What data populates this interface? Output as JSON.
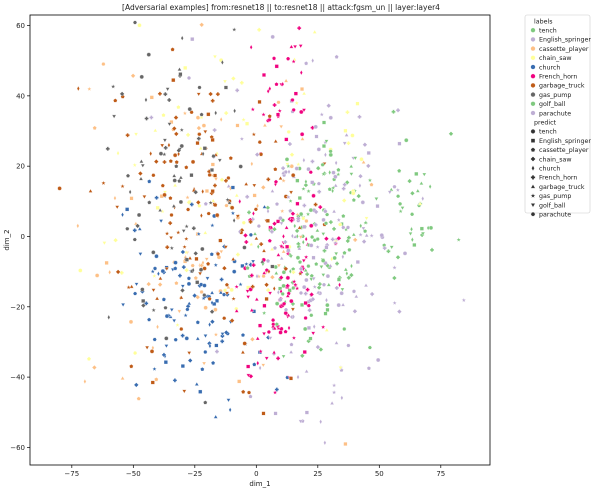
{
  "chart_data": {
    "type": "scatter",
    "title": "[Adversarial examples] from:resnet18 || to:resnet18 || attack:fgsm_un || layer:layer4",
    "xlabel": "dim_1",
    "ylabel": "dim_2",
    "xlim": [
      -92,
      95
    ],
    "ylim": [
      -65,
      63
    ],
    "xticks": [
      -75,
      -50,
      -25,
      0,
      25,
      50,
      75
    ],
    "yticks": [
      -60,
      -40,
      -20,
      0,
      20,
      40,
      60
    ],
    "xtick_labels": [
      "−75",
      "−50",
      "−25",
      "0",
      "25",
      "50",
      "75"
    ],
    "ytick_labels": [
      "−60",
      "−40",
      "−20",
      "0",
      "20",
      "40",
      "60"
    ],
    "grid": false,
    "legend_position": "outside-right",
    "legend_hue_title": "labels",
    "legend_style_title": "predict",
    "classes": [
      {
        "name": "tench",
        "color": "#7fc97f",
        "marker": "circle"
      },
      {
        "name": "English_springer",
        "color": "#beaed4",
        "marker": "square"
      },
      {
        "name": "cassette_player",
        "color": "#fdc086",
        "marker": "pentagon"
      },
      {
        "name": "chain_saw",
        "color": "#ffff99",
        "marker": "diamond"
      },
      {
        "name": "church",
        "color": "#386cb0",
        "marker": "diamond-thin"
      },
      {
        "name": "French_horn",
        "color": "#f0027f",
        "marker": "plus"
      },
      {
        "name": "garbage_truck",
        "color": "#bf5b17",
        "marker": "triangle-up"
      },
      {
        "name": "gas_pump",
        "color": "#666666",
        "marker": "star"
      },
      {
        "name": "golf_ball",
        "color": "#7fc97f",
        "marker": "triangle-down"
      },
      {
        "name": "parachute",
        "color": "#beaed4",
        "marker": "hexagon"
      }
    ],
    "series": [
      {
        "name": "tench",
        "clusters": [
          {
            "x": 22,
            "y": -5,
            "sx": 12,
            "sy": 12,
            "n": 95
          },
          {
            "x": 65,
            "y": 10,
            "sx": 6,
            "sy": 10,
            "n": 30
          }
        ]
      },
      {
        "name": "English_springer",
        "clusters": [
          {
            "x": 20,
            "y": 5,
            "sx": 18,
            "sy": 25,
            "n": 110
          }
        ]
      },
      {
        "name": "cassette_player",
        "clusters": [
          {
            "x": -20,
            "y": 5,
            "sx": 25,
            "sy": 25,
            "n": 100
          }
        ]
      },
      {
        "name": "chain_saw",
        "clusters": [
          {
            "x": -5,
            "y": 20,
            "sx": 30,
            "sy": 30,
            "n": 90
          }
        ]
      },
      {
        "name": "church",
        "clusters": [
          {
            "x": -25,
            "y": -20,
            "sx": 14,
            "sy": 14,
            "n": 120
          }
        ]
      },
      {
        "name": "French_horn",
        "clusters": [
          {
            "x": 10,
            "y": -15,
            "sx": 10,
            "sy": 13,
            "n": 110
          },
          {
            "x": 10,
            "y": 40,
            "sx": 6,
            "sy": 10,
            "n": 35
          }
        ]
      },
      {
        "name": "garbage_truck",
        "clusters": [
          {
            "x": -20,
            "y": 5,
            "sx": 20,
            "sy": 22,
            "n": 150
          }
        ]
      },
      {
        "name": "gas_pump",
        "clusters": [
          {
            "x": -30,
            "y": 15,
            "sx": 14,
            "sy": 22,
            "n": 90
          }
        ]
      },
      {
        "name": "golf_ball",
        "clusters": [
          {
            "x": 25,
            "y": 5,
            "sx": 12,
            "sy": 15,
            "n": 60
          }
        ]
      },
      {
        "name": "parachute",
        "clusters": [
          {
            "x": 25,
            "y": -10,
            "sx": 20,
            "sy": 20,
            "n": 80
          }
        ]
      }
    ]
  }
}
